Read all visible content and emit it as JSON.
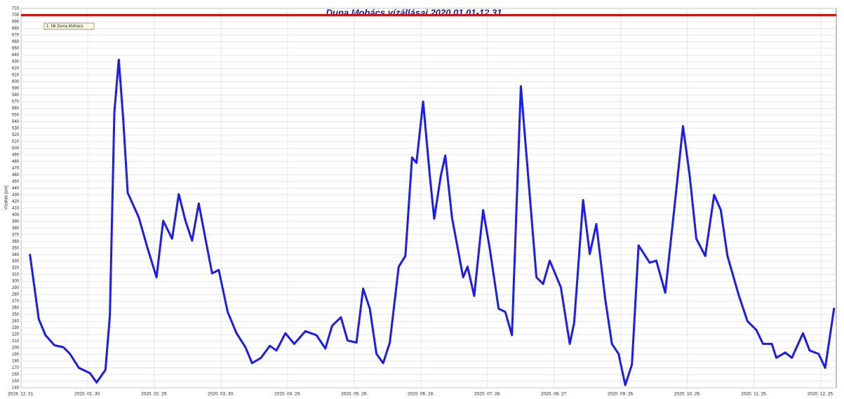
{
  "chart_data": {
    "type": "line",
    "title": "Duna Mohács vízállásai 2020.01.01-12.31",
    "y_label": "Vízállás [cm]",
    "legend": "1. Nk Duna Mohács",
    "x": [
      4,
      8,
      11,
      15,
      19,
      22,
      26,
      31,
      34,
      38,
      40,
      42,
      44,
      46,
      48,
      53,
      57,
      61,
      64,
      68,
      71,
      74,
      77,
      80,
      83,
      86,
      89,
      93,
      97,
      101,
      104,
      108,
      112,
      115,
      119,
      123,
      128,
      133,
      137,
      140,
      144,
      147,
      151,
      154,
      157,
      160,
      163,
      166,
      170,
      173,
      176,
      178,
      181,
      184,
      186,
      189,
      191,
      194,
      199,
      201,
      204,
      208,
      211,
      215,
      218,
      221,
      225,
      228,
      232,
      235,
      238,
      243,
      247,
      249,
      253,
      256,
      259,
      263,
      266,
      269,
      272,
      275,
      278,
      283,
      286,
      290,
      294,
      298,
      301,
      304,
      308,
      312,
      315,
      318,
      323,
      327,
      331,
      334,
      338,
      340,
      344,
      347,
      352,
      355,
      359,
      362,
      366
    ],
    "series": [
      {
        "name": "1. Nk Duna Mohács",
        "color": "#1a1aff",
        "values": [
          340,
          243,
          219,
          204,
          201,
          191,
          170,
          162,
          148,
          167,
          248,
          554,
          633,
          544,
          433,
          396,
          349,
          306,
          391,
          364,
          431,
          391,
          361,
          417,
          364,
          312,
          317,
          254,
          222,
          201,
          177,
          185,
          203,
          196,
          222,
          206,
          225,
          219,
          199,
          233,
          246,
          211,
          208,
          289,
          259,
          191,
          177,
          208,
          322,
          338,
          486,
          478,
          570,
          459,
          394,
          459,
          489,
          396,
          306,
          322,
          278,
          407,
          349,
          259,
          254,
          219,
          593,
          470,
          306,
          296,
          331,
          291,
          206,
          238,
          422,
          341,
          386,
          273,
          206,
          191,
          144,
          175,
          354,
          328,
          331,
          283,
          407,
          533,
          459,
          364,
          338,
          430,
          407,
          338,
          280,
          240,
          227,
          206,
          206,
          185,
          193,
          185,
          222,
          196,
          191,
          170,
          259
        ]
      }
    ],
    "reference_line": {
      "value": 700,
      "color": "#ff0000"
    },
    "xlim": [
      0,
      367
    ],
    "xticks": [
      {
        "value": 0,
        "label": "2019. 12. 31."
      },
      {
        "value": 30,
        "label": "2020. 01. 30."
      },
      {
        "value": 60,
        "label": "2020. 02. 29."
      },
      {
        "value": 90,
        "label": "2020. 03. 30."
      },
      {
        "value": 120,
        "label": "2020. 04. 29."
      },
      {
        "value": 150,
        "label": "2020. 05. 29."
      },
      {
        "value": 180,
        "label": "2020. 06. 28."
      },
      {
        "value": 210,
        "label": "2020. 07. 28."
      },
      {
        "value": 240,
        "label": "2020. 08. 27."
      },
      {
        "value": 270,
        "label": "2020. 09. 26."
      },
      {
        "value": 300,
        "label": "2020. 10. 26."
      },
      {
        "value": 330,
        "label": "2020. 11. 25."
      },
      {
        "value": 360,
        "label": "2020. 12. 25."
      }
    ],
    "ylim": [
      140,
      710
    ],
    "yticks": [
      140,
      150,
      160,
      170,
      180,
      190,
      200,
      210,
      220,
      230,
      240,
      250,
      260,
      270,
      280,
      290,
      300,
      310,
      320,
      330,
      340,
      350,
      360,
      370,
      380,
      390,
      400,
      410,
      420,
      430,
      440,
      450,
      460,
      470,
      480,
      490,
      500,
      510,
      520,
      530,
      540,
      550,
      560,
      570,
      580,
      590,
      600,
      610,
      620,
      630,
      640,
      650,
      660,
      670,
      680,
      690,
      700,
      710
    ],
    "grid": true
  }
}
